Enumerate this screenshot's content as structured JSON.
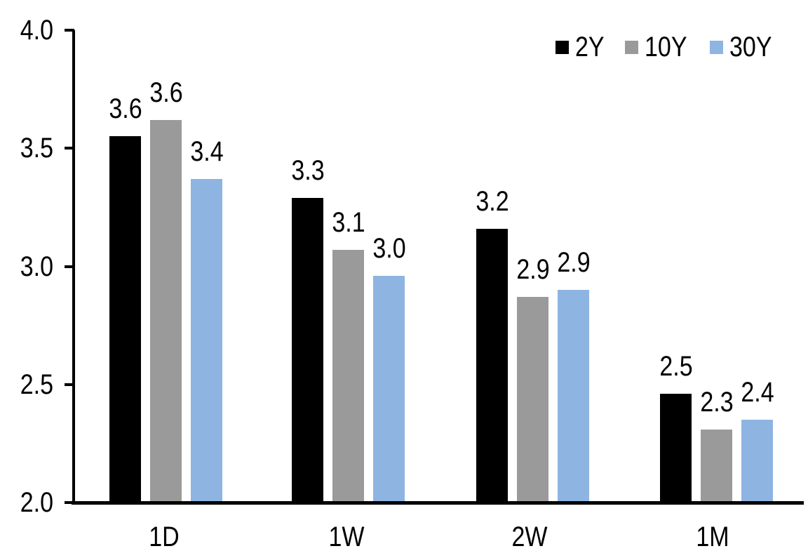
{
  "chart_data": {
    "type": "bar",
    "title": "",
    "xlabel": "",
    "ylabel": "",
    "categories": [
      "1D",
      "1W",
      "2W",
      "1M"
    ],
    "series": [
      {
        "name": "2Y",
        "color": "#000000",
        "values": [
          3.55,
          3.29,
          3.16,
          2.46
        ],
        "labels": [
          "3.6",
          "3.3",
          "3.2",
          "2.5"
        ]
      },
      {
        "name": "10Y",
        "color": "#9A9A9A",
        "values": [
          3.62,
          3.07,
          2.87,
          2.31
        ],
        "labels": [
          "3.6",
          "3.1",
          "2.9",
          "2.3"
        ]
      },
      {
        "name": "30Y",
        "color": "#8EB4E2",
        "values": [
          3.37,
          2.96,
          2.9,
          2.35
        ],
        "labels": [
          "3.4",
          "3.0",
          "2.9",
          "2.4"
        ]
      }
    ],
    "ylim": [
      2.0,
      4.0
    ],
    "yticks": [
      2.0,
      2.5,
      3.0,
      3.5,
      4.0
    ],
    "ytick_labels": [
      "2.0",
      "2.5",
      "3.0",
      "3.5",
      "4.0"
    ],
    "legend": [
      "2Y",
      "10Y",
      "30Y"
    ],
    "legend_position": "top-right",
    "grid": false,
    "axis_color": "#000000",
    "background": "#FFFFFF"
  }
}
